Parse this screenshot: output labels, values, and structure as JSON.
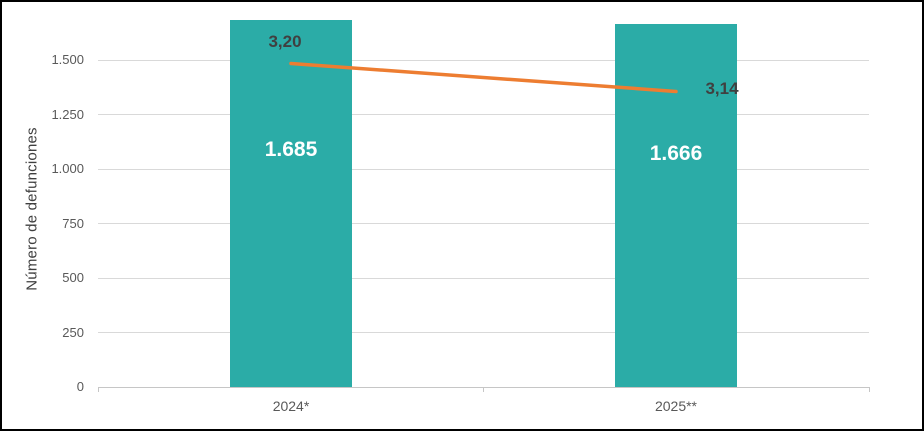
{
  "chart_data": {
    "type": "combo-bar-line",
    "title": "",
    "xlabel": "",
    "ylabel": "Número de defunciones",
    "categories": [
      "2024*",
      "2025**"
    ],
    "series": [
      {
        "type": "bar",
        "values": [
          1685,
          1666
        ],
        "data_labels": [
          "1.685",
          "1.666"
        ],
        "color": "#2BACA7",
        "label_color": "#FFFFFF"
      },
      {
        "type": "line",
        "values": [
          3.2,
          3.14
        ],
        "data_labels": [
          "3,20",
          "3,14"
        ],
        "color": "#ED7D31",
        "label_color": "#404040"
      }
    ],
    "yticks": [
      {
        "value": 0,
        "label": "0"
      },
      {
        "value": 250,
        "label": "250"
      },
      {
        "value": 500,
        "label": "500"
      },
      {
        "value": 750,
        "label": "750"
      },
      {
        "value": 1000,
        "label": "1.000"
      },
      {
        "value": 1250,
        "label": "1.250"
      },
      {
        "value": 1500,
        "label": "1.500"
      }
    ],
    "ylim": [
      0,
      1700
    ],
    "grid": true,
    "legend_position": "none"
  },
  "colors": {
    "background": "#FFFFFF",
    "frame_border": "#000000",
    "gridline": "#D9D9D9",
    "axis_line": "#C6C6C6",
    "tick_mark": "#C6C6C6",
    "tick_label": "#595959",
    "axis_title": "#3F3F3F"
  }
}
